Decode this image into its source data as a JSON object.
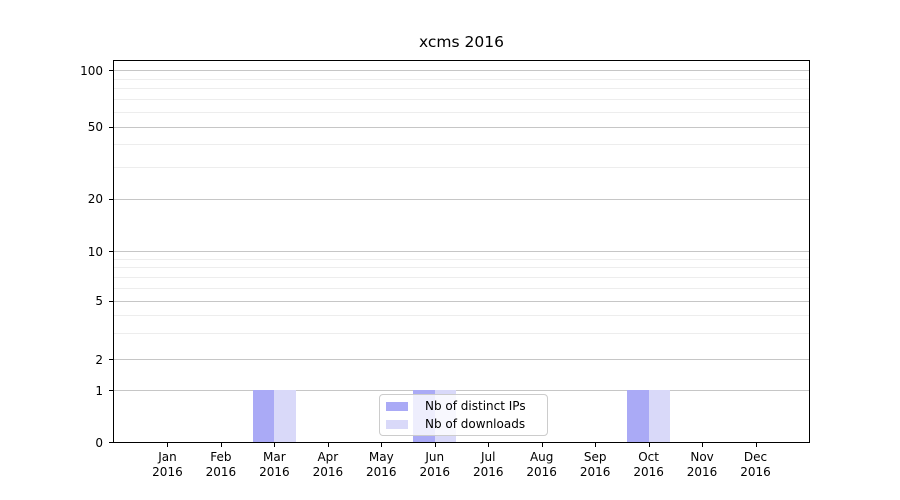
{
  "chart_data": {
    "type": "bar",
    "title": "xcms 2016",
    "xlabel": "",
    "ylabel": "",
    "categories": [
      {
        "month": "Jan",
        "year": "2016"
      },
      {
        "month": "Feb",
        "year": "2016"
      },
      {
        "month": "Mar",
        "year": "2016"
      },
      {
        "month": "Apr",
        "year": "2016"
      },
      {
        "month": "May",
        "year": "2016"
      },
      {
        "month": "Jun",
        "year": "2016"
      },
      {
        "month": "Jul",
        "year": "2016"
      },
      {
        "month": "Aug",
        "year": "2016"
      },
      {
        "month": "Sep",
        "year": "2016"
      },
      {
        "month": "Oct",
        "year": "2016"
      },
      {
        "month": "Nov",
        "year": "2016"
      },
      {
        "month": "Dec",
        "year": "2016"
      }
    ],
    "series": [
      {
        "name": "Nb of distinct IPs",
        "color": "#aaaaf6",
        "values": [
          0,
          0,
          1,
          0,
          0,
          1,
          0,
          0,
          0,
          1,
          0,
          0
        ]
      },
      {
        "name": "Nb of downloads",
        "color": "#d9d9f9",
        "values": [
          0,
          0,
          1,
          0,
          0,
          1,
          0,
          0,
          0,
          1,
          0,
          0
        ]
      }
    ],
    "yaxis": {
      "scale": "log-like (compressed near zero)",
      "major_ticks": [
        {
          "value": 0,
          "fraction": 0
        },
        {
          "value": 1,
          "fraction": 0.136
        },
        {
          "value": 2,
          "fraction": 0.217
        },
        {
          "value": 5,
          "fraction": 0.371
        },
        {
          "value": 10,
          "fraction": 0.501
        },
        {
          "value": 20,
          "fraction": 0.639
        },
        {
          "value": 50,
          "fraction": 0.828
        },
        {
          "value": 100,
          "fraction": 0.976
        }
      ],
      "minor_tick_values": [
        3,
        4,
        6,
        7,
        8,
        9,
        30,
        40,
        60,
        70,
        80,
        90
      ]
    },
    "legend": {
      "position": "lower center"
    },
    "grid": {
      "major_color": "#c6c6c6",
      "minor_color": "#ededed",
      "on": true
    }
  }
}
